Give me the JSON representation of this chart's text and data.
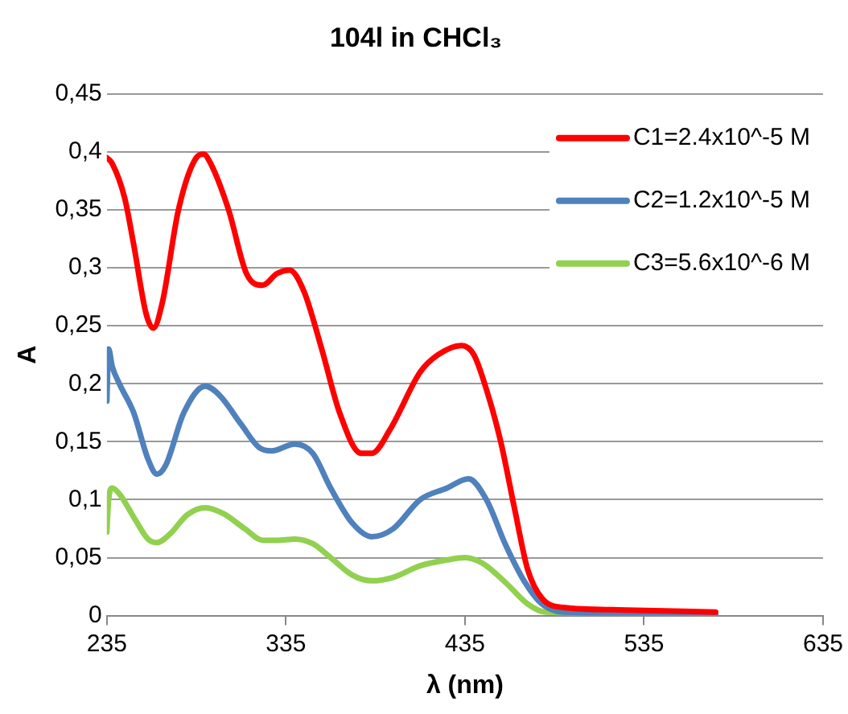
{
  "chart_data": {
    "type": "line",
    "title": "104l in CHCl₃",
    "xlabel": "λ (nm)",
    "ylabel": "A",
    "xlim": [
      235,
      635
    ],
    "xticks": [
      235,
      335,
      435,
      535,
      635
    ],
    "ylim": [
      0,
      0.45
    ],
    "yticks": [
      {
        "value": 0,
        "label": "0"
      },
      {
        "value": 0.05,
        "label": "0,05"
      },
      {
        "value": 0.1,
        "label": "0,1"
      },
      {
        "value": 0.15,
        "label": "0,15"
      },
      {
        "value": 0.2,
        "label": "0,2"
      },
      {
        "value": 0.25,
        "label": "0,25"
      },
      {
        "value": 0.3,
        "label": "0,3"
      },
      {
        "value": 0.35,
        "label": "0,35"
      },
      {
        "value": 0.4,
        "label": "0,4"
      },
      {
        "value": 0.45,
        "label": "0,45"
      }
    ],
    "grid": "y",
    "legend": "top right",
    "marker": "none",
    "line_style": "solid",
    "series": [
      {
        "name": "C1=2.4x10^-5 M",
        "color": "#ff0000",
        "x": [
          235,
          238,
          245,
          250,
          257,
          261,
          266,
          275,
          285,
          289,
          293,
          303,
          313,
          322,
          330,
          337,
          345,
          355,
          365,
          377,
          383,
          393,
          410,
          420,
          433,
          440,
          448,
          455,
          463,
          470,
          478,
          490,
          520,
          575
        ],
        "values": [
          0.395,
          0.39,
          0.36,
          0.32,
          0.26,
          0.248,
          0.27,
          0.35,
          0.395,
          0.398,
          0.39,
          0.35,
          0.295,
          0.285,
          0.295,
          0.298,
          0.28,
          0.23,
          0.175,
          0.14,
          0.14,
          0.16,
          0.21,
          0.225,
          0.233,
          0.225,
          0.19,
          0.15,
          0.09,
          0.04,
          0.015,
          0.007,
          0.005,
          0.003
        ]
      },
      {
        "name": "C2=1.2x10^-5 M",
        "color": "#4f81bd",
        "x": [
          235,
          236,
          238,
          242,
          250,
          258,
          263,
          268,
          278,
          290,
          298,
          310,
          320,
          327,
          340,
          350,
          360,
          372,
          383,
          395,
          410,
          425,
          437,
          447,
          458,
          468,
          478,
          490,
          575
        ],
        "values": [
          0.185,
          0.23,
          0.215,
          0.2,
          0.175,
          0.135,
          0.122,
          0.13,
          0.175,
          0.198,
          0.19,
          0.165,
          0.145,
          0.142,
          0.148,
          0.14,
          0.11,
          0.08,
          0.068,
          0.075,
          0.1,
          0.11,
          0.118,
          0.1,
          0.06,
          0.03,
          0.01,
          0.003,
          0.001
        ]
      },
      {
        "name": "C3=5.6x10^-6 M",
        "color": "#92d050",
        "x": [
          235,
          236,
          238,
          242,
          250,
          258,
          263,
          270,
          280,
          290,
          300,
          312,
          322,
          330,
          340,
          350,
          360,
          372,
          383,
          395,
          410,
          425,
          435,
          445,
          458,
          470,
          480,
          575
        ],
        "values": [
          0.072,
          0.1,
          0.11,
          0.105,
          0.085,
          0.066,
          0.063,
          0.07,
          0.087,
          0.093,
          0.088,
          0.075,
          0.065,
          0.065,
          0.066,
          0.062,
          0.05,
          0.035,
          0.03,
          0.033,
          0.043,
          0.048,
          0.05,
          0.045,
          0.028,
          0.01,
          0.003,
          0.001
        ]
      }
    ]
  }
}
